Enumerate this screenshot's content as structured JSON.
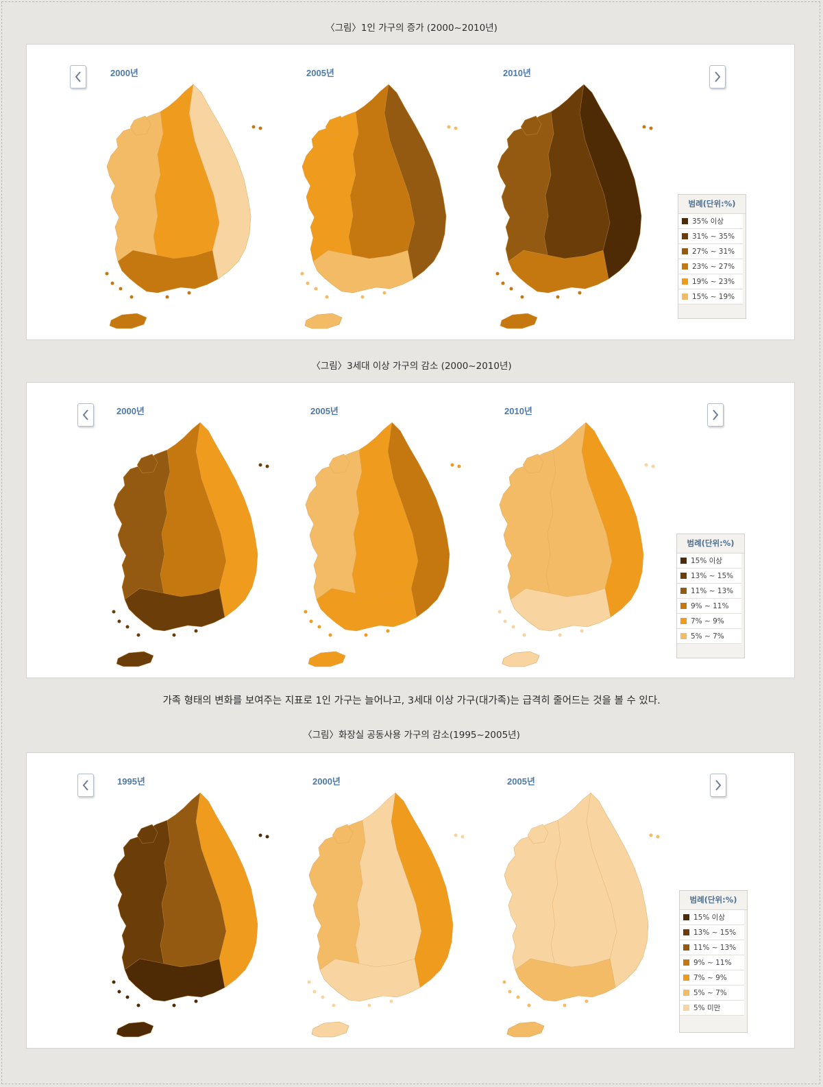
{
  "page": {
    "captions": [
      "〈그림〉1인 가구의 증가 (2000~2010년)",
      "〈그림〉3세대 이상 가구의 감소 (2000~2010년)",
      "〈그림〉화장실 공동사용 가구의 감소(1995~2005년)"
    ],
    "body_text": "가족 형태의 변화를 보여주는 지표로 1인 가구는 늘어나고, 3세대 이상 가구(대가족)는 급격히 줄어드는 것을 볼 수 있다."
  },
  "panels": [
    {
      "years": [
        "2000년",
        "2005년",
        "2010년"
      ],
      "legend_title": "범례(단위:%)",
      "legend": [
        {
          "label": "35% 이상",
          "color": "#4e2b05"
        },
        {
          "label": "31% ~ 35%",
          "color": "#6b3d09"
        },
        {
          "label": "27% ~ 31%",
          "color": "#955a11"
        },
        {
          "label": "23% ~ 27%",
          "color": "#c5780f"
        },
        {
          "label": "19% ~ 23%",
          "color": "#ef9b1e"
        },
        {
          "label": "15% ~ 19%",
          "color": "#f4bb66"
        }
      ],
      "map_fills": [
        [
          "#ef9b1e",
          "#f4bb66",
          "#f8d4a0",
          "#c5780f"
        ],
        [
          "#c5780f",
          "#ef9b1e",
          "#955a11",
          "#f4bb66"
        ],
        [
          "#6b3d09",
          "#955a11",
          "#4e2b05",
          "#c5780f"
        ]
      ]
    },
    {
      "years": [
        "2000년",
        "2005년",
        "2010년"
      ],
      "legend_title": "범례(단위:%)",
      "legend": [
        {
          "label": "15% 이상",
          "color": "#4e2b05"
        },
        {
          "label": "13% ~ 15%",
          "color": "#6b3d09"
        },
        {
          "label": "11% ~ 13%",
          "color": "#955a11"
        },
        {
          "label": "9% ~ 11%",
          "color": "#c5780f"
        },
        {
          "label": "7% ~ 9%",
          "color": "#ef9b1e"
        },
        {
          "label": "5% ~ 7%",
          "color": "#f4bb66"
        }
      ],
      "map_fills": [
        [
          "#c5780f",
          "#955a11",
          "#ef9b1e",
          "#6b3d09"
        ],
        [
          "#ef9b1e",
          "#f4bb66",
          "#c5780f",
          "#ef9b1e"
        ],
        [
          "#f4bb66",
          "#f4bb66",
          "#ef9b1e",
          "#f8d4a0"
        ]
      ]
    },
    {
      "years": [
        "1995년",
        "2000년",
        "2005년"
      ],
      "legend_title": "범례(단위:%)",
      "legend": [
        {
          "label": "15% 이상",
          "color": "#4e2b05"
        },
        {
          "label": "13% ~ 15%",
          "color": "#6b3d09"
        },
        {
          "label": "11% ~ 13%",
          "color": "#955a11"
        },
        {
          "label": "9% ~ 11%",
          "color": "#c5780f"
        },
        {
          "label": "7% ~ 9%",
          "color": "#ef9b1e"
        },
        {
          "label": "5% ~ 7%",
          "color": "#f4bb66"
        },
        {
          "label": "5% 미만",
          "color": "#f8d4a0"
        }
      ],
      "map_fills": [
        [
          "#955a11",
          "#6b3d09",
          "#ef9b1e",
          "#4e2b05"
        ],
        [
          "#f8d4a0",
          "#f4bb66",
          "#ef9b1e",
          "#f8d4a0"
        ],
        [
          "#f8d4a0",
          "#f8d4a0",
          "#f8d4a0",
          "#f4bb66"
        ]
      ]
    }
  ]
}
